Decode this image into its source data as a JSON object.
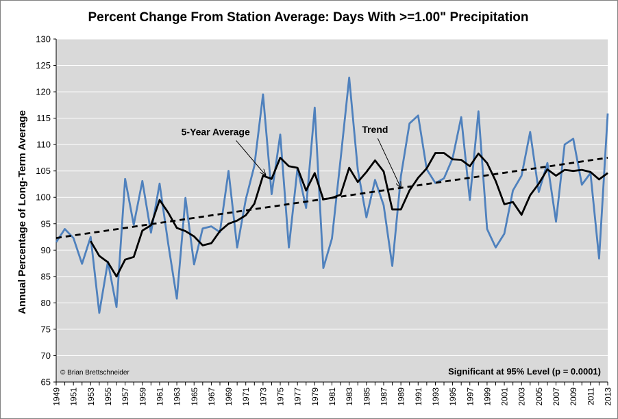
{
  "chart_data": {
    "type": "line",
    "title": "Percent Change From Station Average: Days With >=1.00\" Precipitation",
    "ylabel": "Annual Percentage of Long-Term Average",
    "xlabel": "",
    "ylim": [
      65,
      130
    ],
    "xlim": [
      1949,
      2013
    ],
    "yticks": [
      65,
      70,
      75,
      80,
      85,
      90,
      95,
      100,
      105,
      110,
      115,
      120,
      125,
      130
    ],
    "xticks": [
      1949,
      1951,
      1953,
      1955,
      1957,
      1959,
      1961,
      1963,
      1965,
      1967,
      1969,
      1971,
      1973,
      1975,
      1977,
      1979,
      1981,
      1983,
      1985,
      1987,
      1989,
      1991,
      1993,
      1995,
      1997,
      1999,
      2001,
      2003,
      2005,
      2007,
      2009,
      2011,
      2013
    ],
    "grid": true,
    "colors": {
      "plot_bg": "#d9d9d9",
      "annual": "#4f81bd",
      "avg": "#000000",
      "trend": "#000000",
      "grid": "#ffffff"
    },
    "series": [
      {
        "key": "annual",
        "x": [
          1949,
          1950,
          1951,
          1952,
          1953,
          1954,
          1955,
          1956,
          1957,
          1958,
          1959,
          1960,
          1961,
          1962,
          1963,
          1964,
          1965,
          1966,
          1967,
          1968,
          1969,
          1970,
          1971,
          1972,
          1973,
          1974,
          1975,
          1976,
          1977,
          1978,
          1979,
          1980,
          1981,
          1982,
          1983,
          1984,
          1985,
          1986,
          1987,
          1988,
          1989,
          1990,
          1991,
          1992,
          1993,
          1994,
          1995,
          1996,
          1997,
          1998,
          1999,
          2000,
          2001,
          2002,
          2003,
          2004,
          2005,
          2006,
          2007,
          2008,
          2009,
          2010,
          2011,
          2012,
          2013
        ],
        "values": [
          91.5,
          94,
          92.3,
          87.4,
          92.5,
          78.1,
          87.8,
          79.2,
          103.5,
          94.8,
          103.1,
          93.3,
          102.6,
          91.2,
          80.8,
          99.9,
          87.3,
          94.1,
          94.5,
          93.4,
          105,
          90.5,
          99.6,
          106,
          119.5,
          100.6,
          111.9,
          90.5,
          105.5,
          98,
          117,
          86.6,
          92.2,
          107.2,
          122.7,
          105.2,
          96.2,
          103.3,
          98.5,
          87,
          104,
          114,
          115.5,
          105.3,
          102.7,
          103.6,
          107.4,
          115.2,
          99.5,
          116.3,
          94,
          90.5,
          93.1,
          101.3,
          104.1,
          112.4,
          101,
          106.5,
          95.4,
          110,
          111.1,
          102.4,
          104.6,
          88.4,
          115.9
        ]
      },
      {
        "name": "5-Year Average",
        "key": "avg",
        "x": [
          1953,
          1954,
          1955,
          1956,
          1957,
          1958,
          1959,
          1960,
          1961,
          1962,
          1963,
          1964,
          1965,
          1966,
          1967,
          1968,
          1969,
          1970,
          1971,
          1972,
          1973,
          1974,
          1975,
          1976,
          1977,
          1978,
          1979,
          1980,
          1981,
          1982,
          1983,
          1984,
          1985,
          1986,
          1987,
          1988,
          1989,
          1990,
          1991,
          1992,
          1993,
          1994,
          1995,
          1996,
          1997,
          1998,
          1999,
          2000,
          2001,
          2002,
          2003,
          2004,
          2005,
          2006,
          2007,
          2008,
          2009,
          2010,
          2011,
          2012,
          2013
        ],
        "values": [
          91.7,
          88.9,
          87.7,
          85.0,
          88.2,
          88.7,
          93.7,
          94.7,
          99.5,
          97.1,
          94.2,
          93.6,
          92.6,
          90.9,
          91.3,
          93.6,
          95,
          95.6,
          96.6,
          98.8,
          104.1,
          103.5,
          107.5,
          105.9,
          105.6,
          101.3,
          104.6,
          99.6,
          99.9,
          100.5,
          105.6,
          102.9,
          104.8,
          107.0,
          104.9,
          97.7,
          97.7,
          101.3,
          103.7,
          105.5,
          108.4,
          108.4,
          107.2,
          107.1,
          105.9,
          108.3,
          106.5,
          103.1,
          98.7,
          99.1,
          96.7,
          100.4,
          102.6,
          105.3,
          104.1,
          105.2,
          105.0,
          105.2,
          104.8,
          103.4,
          104.6
        ]
      },
      {
        "name": "Trend",
        "key": "trend",
        "x": [
          1949,
          2013
        ],
        "values": [
          92.3,
          107.5
        ]
      }
    ],
    "annotations": [
      {
        "text": "5-Year Average",
        "x": 1967.5,
        "y": 111.8,
        "arrow_to": [
          1973.3,
          104.2
        ]
      },
      {
        "text": "Trend",
        "x": 1986,
        "y": 112.2,
        "arrow_to": [
          1989,
          101.8
        ]
      }
    ],
    "footer_left": "© Brian Brettschneider",
    "footer_right": "Significant  at 95% Level (p = 0.0001)"
  }
}
